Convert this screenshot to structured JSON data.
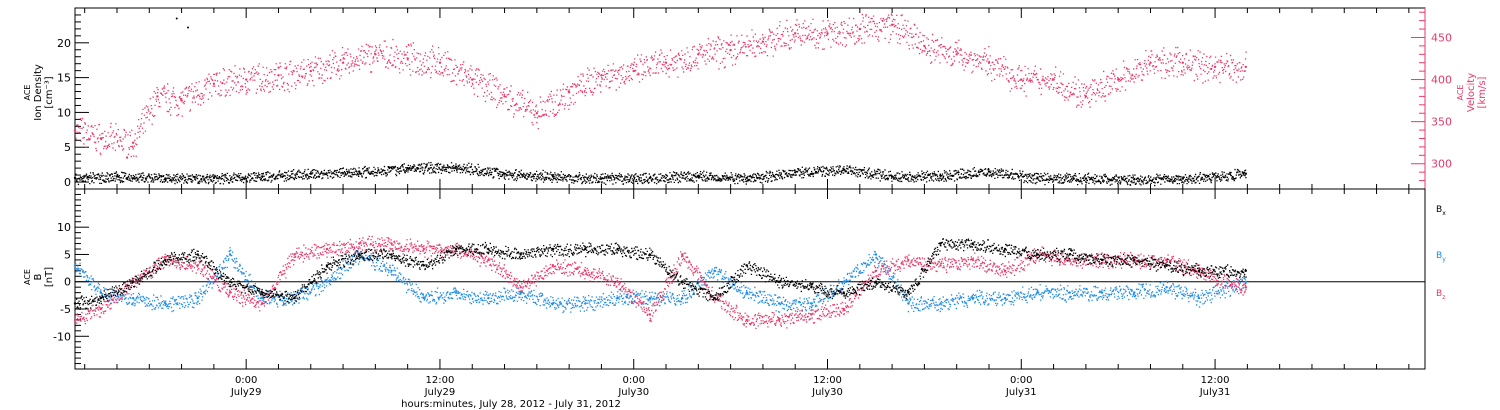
{
  "colors": {
    "axis": "#000000",
    "velocity": "#e8396a",
    "bx": "#000000",
    "by": "#1f8ce6",
    "bz": "#e8396a"
  },
  "xlabel": "hours:minutes, July 28, 2012 - July 31, 2012",
  "x_ticks": [
    {
      "time": "0:00",
      "day": "July29"
    },
    {
      "time": "12:00",
      "day": "July29"
    },
    {
      "time": "0:00",
      "day": "July30"
    },
    {
      "time": "12:00",
      "day": "July30"
    },
    {
      "time": "0:00",
      "day": "July31"
    },
    {
      "time": "12:00",
      "day": "July31"
    }
  ],
  "chart_data": [
    {
      "type": "scatter",
      "panel": "top",
      "x_unit": "hours since July 28 0:00",
      "xlim": [
        13.4,
        97.0
      ],
      "data_end_x": 85.9,
      "left_axis": {
        "label_lines": [
          "ACE",
          "Ion Density",
          "[cm⁻³]"
        ],
        "ylim": [
          -1,
          25
        ],
        "ticks": [
          0,
          5,
          10,
          15,
          20
        ]
      },
      "right_axis": {
        "label_lines": [
          "ACE",
          "Velocity",
          "[km/s]"
        ],
        "ylim": [
          270,
          485
        ],
        "ticks": [
          300,
          350,
          400,
          450
        ]
      },
      "series": [
        {
          "axis": "left",
          "color": "#000000",
          "x": [
            13.4,
            16,
            19,
            22,
            25,
            28,
            31,
            34,
            37,
            40,
            43,
            46,
            49,
            52,
            55,
            58,
            61,
            64,
            67,
            70,
            73,
            76,
            79,
            82,
            85.9
          ],
          "y": [
            0.6,
            0.8,
            0.5,
            0.6,
            0.8,
            1.2,
            1.5,
            2.0,
            2.2,
            1.2,
            0.8,
            0.5,
            0.6,
            0.9,
            0.6,
            1.4,
            1.8,
            0.8,
            0.9,
            1.5,
            0.6,
            0.5,
            0.4,
            0.5,
            1.2
          ]
        },
        {
          "axis": "right",
          "color": "#e8396a",
          "x": [
            13.4,
            15,
            17,
            18.5,
            20,
            22,
            24,
            26,
            28,
            30,
            32,
            34,
            36,
            38,
            40,
            42,
            44,
            46,
            48,
            50,
            52,
            54,
            56,
            58,
            60,
            62,
            64,
            66,
            68,
            70,
            72,
            74,
            76,
            78,
            80,
            82,
            84,
            85.9
          ],
          "y": [
            340,
            330,
            325,
            380,
            375,
            395,
            400,
            405,
            410,
            420,
            430,
            425,
            420,
            400,
            380,
            360,
            385,
            405,
            410,
            420,
            430,
            435,
            445,
            455,
            455,
            460,
            465,
            440,
            430,
            420,
            400,
            400,
            380,
            400,
            420,
            420,
            415,
            415
          ]
        }
      ]
    },
    {
      "type": "scatter",
      "panel": "bottom",
      "x_unit": "hours since July 28 0:00",
      "xlim": [
        13.4,
        97.0
      ],
      "data_end_x": 85.9,
      "y_axis": {
        "label_lines": [
          "ACE",
          "B",
          "[nT]"
        ],
        "ylim": [
          -16,
          17
        ],
        "ticks": [
          -10,
          -5,
          0,
          5,
          10
        ]
      },
      "legend_placement": "right",
      "series": [
        {
          "name": "Bx",
          "legend_main": "B",
          "legend_sub": "x",
          "color": "#000000",
          "x": [
            13.4,
            15,
            17,
            19,
            21,
            23,
            25,
            27,
            29,
            31,
            33,
            35,
            37,
            39,
            41,
            43,
            45,
            47,
            49,
            51,
            53,
            55,
            57,
            59,
            61,
            63,
            65,
            67,
            69,
            71,
            73,
            75,
            77,
            79,
            81,
            83,
            85.9
          ],
          "y": [
            -4,
            -3,
            0,
            4,
            5,
            0,
            -2,
            -3,
            3,
            5,
            5,
            3,
            6,
            6,
            5,
            6,
            6,
            6,
            5,
            0,
            -3,
            3,
            0,
            -1,
            -2,
            0,
            -2,
            7,
            7,
            6,
            5,
            5,
            4,
            4,
            3,
            2,
            2
          ]
        },
        {
          "name": "By",
          "legend_main": "B",
          "legend_sub": "y",
          "color": "#1f8ce6",
          "x": [
            13.4,
            15,
            17,
            19,
            21,
            23,
            25,
            27,
            29,
            31,
            33,
            35,
            37,
            39,
            41,
            43,
            45,
            47,
            49,
            51,
            53,
            55,
            57,
            59,
            61,
            63,
            65,
            67,
            69,
            71,
            73,
            75,
            77,
            79,
            81,
            83,
            85.9
          ],
          "y": [
            3,
            -2,
            -3,
            -4,
            -3,
            5,
            -3,
            -3,
            0,
            5,
            2,
            -3,
            -2,
            -3,
            -2,
            -4,
            -4,
            -3,
            -3,
            -3,
            2,
            -2,
            -4,
            -4,
            0,
            5,
            -4,
            -4,
            -3,
            -3,
            -2,
            -2,
            -2,
            -2,
            -1,
            -3,
            0
          ]
        },
        {
          "name": "Bz",
          "legend_main": "B",
          "legend_sub": "z",
          "color": "#e8396a",
          "x": [
            13.4,
            15,
            17,
            19,
            21,
            23,
            25,
            27,
            29,
            31,
            33,
            35,
            37,
            39,
            41,
            43,
            45,
            47,
            49,
            51,
            53,
            55,
            57,
            59,
            61,
            63,
            65,
            67,
            69,
            71,
            73,
            75,
            77,
            79,
            81,
            83,
            85.9
          ],
          "y": [
            -7,
            -5,
            0,
            4,
            3,
            -2,
            -4,
            5,
            6,
            7,
            7,
            6,
            6,
            4,
            -1,
            3,
            2,
            0,
            -6,
            5,
            -3,
            -7,
            -7,
            -6,
            -5,
            2,
            4,
            3,
            4,
            2,
            5,
            4,
            4,
            4,
            4,
            2,
            -1
          ]
        }
      ]
    }
  ]
}
